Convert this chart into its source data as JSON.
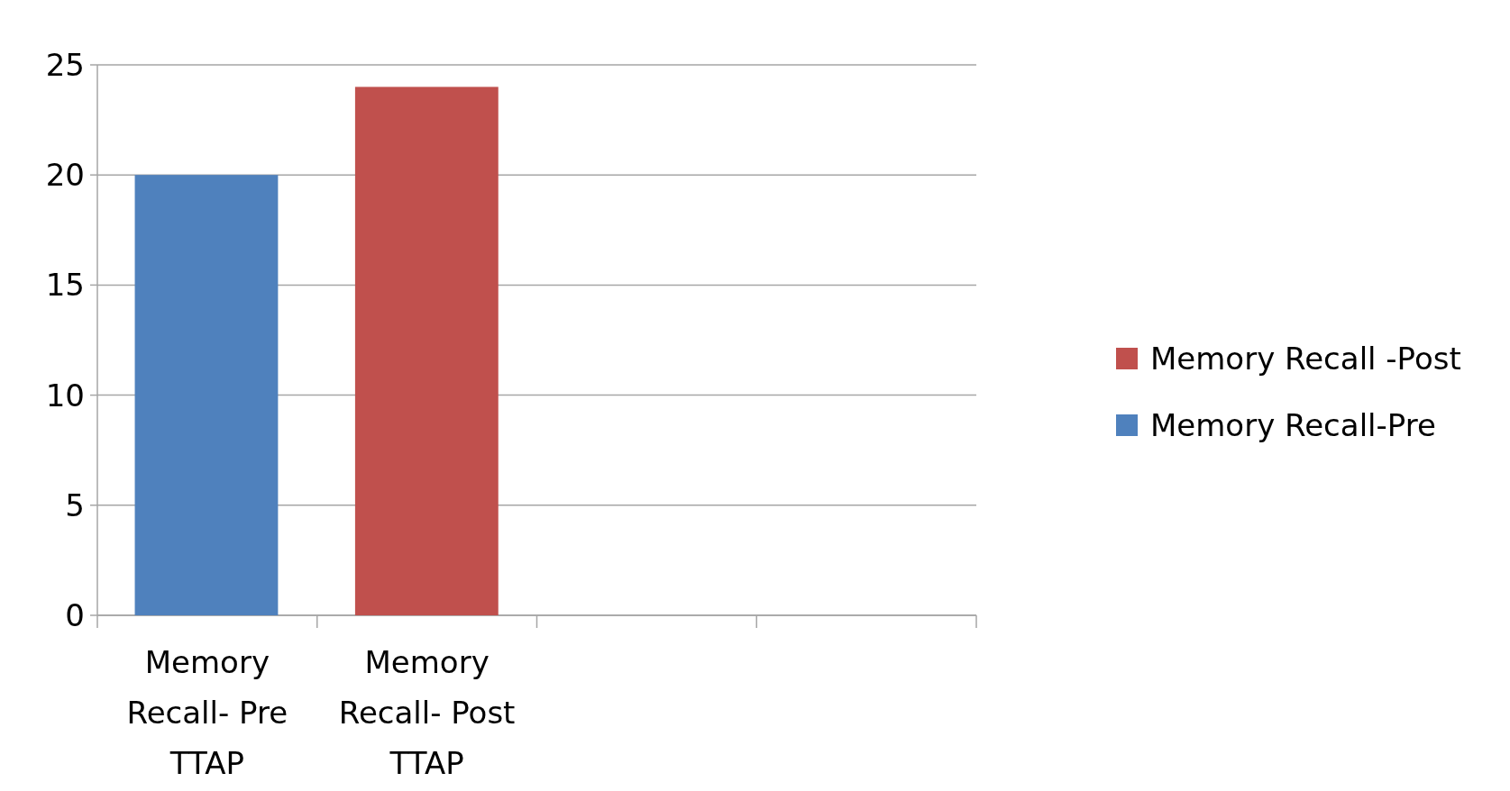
{
  "chart_data": {
    "type": "bar",
    "categories": [
      "Memory Recall- Pre TTAP",
      "Memory Recall- Post TTAP",
      null,
      null
    ],
    "series": [
      {
        "name": "Memory Recall -Post",
        "color": "#c0504d",
        "values": [
          null,
          24,
          null,
          null
        ]
      },
      {
        "name": "Memory Recall-Pre",
        "color": "#4f81bd",
        "values": [
          20,
          null,
          null,
          null
        ]
      }
    ],
    "ylim": [
      0,
      25
    ],
    "yticks": [
      0,
      5,
      10,
      15,
      20,
      25
    ],
    "grid": "y",
    "legend": "right"
  }
}
